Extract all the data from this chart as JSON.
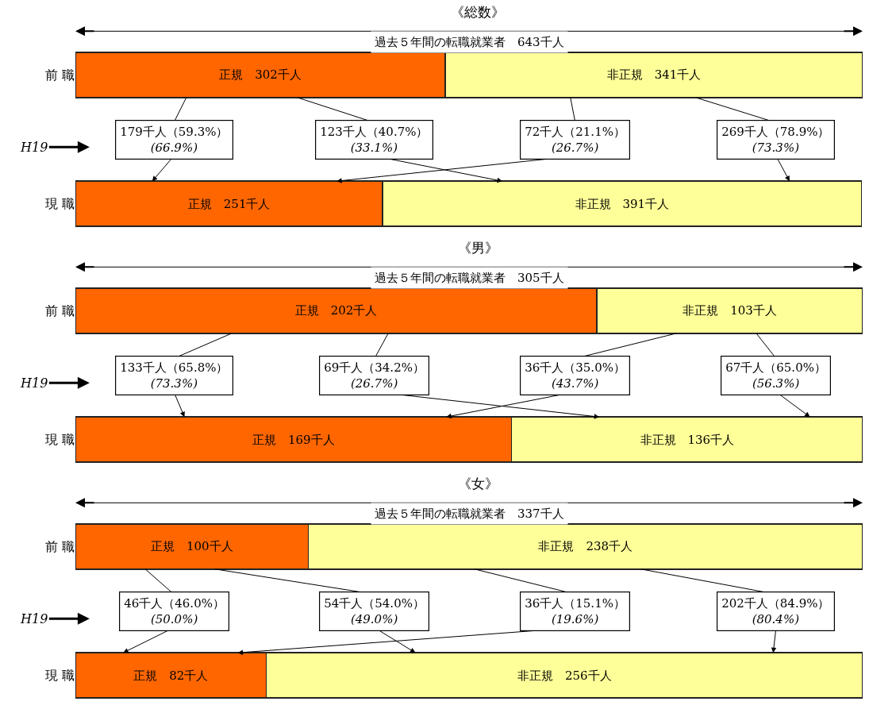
{
  "chart_data": [
    {
      "type": "bar",
      "orientation": "horizontal",
      "stacked": true,
      "title": "《総数》",
      "categories": [
        "前 職",
        "現 職"
      ],
      "tick_labels": "y",
      "series": [
        {
          "color": "#ff6600",
          "values": [
            302,
            251
          ],
          "value_labels": [
            "正規　302千人",
            "正規　251千人"
          ]
        },
        {
          "color": "#ffff99",
          "values": [
            341,
            391
          ],
          "value_labels": [
            "非正規　341千人",
            "非正規　391千人"
          ]
        }
      ],
      "annotations": [
        "過去５年間の転職就業者　643千人",
        "179千人（59.3%）\n(66.9%)",
        "123千人（40.7%）\n(33.1%)",
        "72千人（21.1%）\n(26.7%)",
        "269千人（78.9%）\n(73.3%)",
        "H19"
      ]
    },
    {
      "type": "bar",
      "orientation": "horizontal",
      "stacked": true,
      "title": "《男》",
      "categories": [
        "前 職",
        "現 職"
      ],
      "tick_labels": "y",
      "series": [
        {
          "color": "#ff6600",
          "values": [
            202,
            169
          ],
          "value_labels": [
            "正規　202千人",
            "正規　169千人"
          ]
        },
        {
          "color": "#ffff99",
          "values": [
            103,
            136
          ],
          "value_labels": [
            "非正規　103千人",
            "非正規　136千人"
          ]
        }
      ],
      "annotations": [
        "過去５年間の転職就業者　305千人",
        "133千人（65.8%）\n(73.3%)",
        "69千人（34.2%）\n(26.7%)",
        "36千人（35.0%）\n(43.7%)",
        "67千人（65.0%）\n(56.3%)",
        "H19"
      ]
    },
    {
      "type": "bar",
      "orientation": "horizontal",
      "stacked": true,
      "title": "《女》",
      "categories": [
        "前 職",
        "現 職"
      ],
      "tick_labels": "y",
      "series": [
        {
          "color": "#ff6600",
          "values": [
            100,
            82
          ],
          "value_labels": [
            "正規　100千人",
            "正規　82千人"
          ]
        },
        {
          "color": "#ffff99",
          "values": [
            238,
            256
          ],
          "value_labels": [
            "非正規　238千人",
            "非正規　256千人"
          ]
        }
      ],
      "annotations": [
        "過去５年間の転職就業者　337千人",
        "46千人（46.0%）\n(50.0%)",
        "54千人（54.0%）\n(49.0%)",
        "36千人（15.1%）\n(19.6%)",
        "202千人（84.9%）\n(80.4%)",
        "H19"
      ]
    }
  ]
}
